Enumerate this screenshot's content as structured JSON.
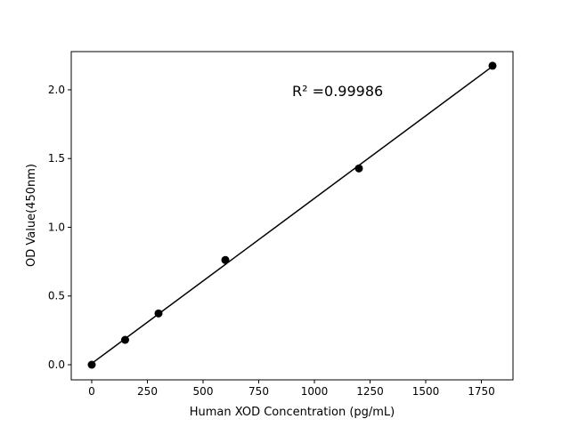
{
  "chart_data": {
    "type": "scatter",
    "title": "",
    "xlabel": "Human XOD Concentration (pg/mL)",
    "ylabel": "OD Value(450nm)",
    "xlim": [
      -92,
      1892
    ],
    "ylim": [
      -0.11,
      2.278
    ],
    "xticks": [
      0,
      250,
      500,
      750,
      1000,
      1250,
      1500,
      1750
    ],
    "yticks": [
      0.0,
      0.5,
      1.0,
      1.5,
      2.0
    ],
    "ytick_labels": [
      "0.0",
      "0.5",
      "1.0",
      "1.5",
      "2.0"
    ],
    "grid": false,
    "series": [
      {
        "x": [
          0,
          150,
          300,
          600,
          1200,
          1800
        ],
        "y": [
          0.0,
          0.181,
          0.373,
          0.762,
          1.428,
          2.175
        ],
        "color": "#000000",
        "marker": "circle"
      }
    ],
    "fit_line": {
      "slope": 0.0012009,
      "intercept": 0.0092,
      "x_range": [
        0,
        1800
      ],
      "color": "#000000"
    },
    "annotation": "R² =0.99986"
  }
}
